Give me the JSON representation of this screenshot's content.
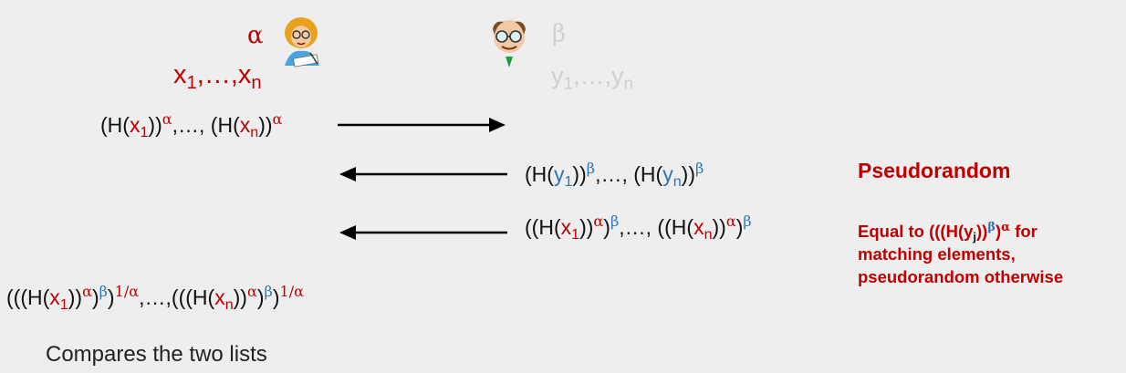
{
  "alice": {
    "exponent": "α",
    "set_var": "x",
    "sub_first": "1",
    "sub_last": "n",
    "ellipsis": ",…,"
  },
  "bob": {
    "exponent": "β",
    "set_var": "y",
    "sub_first": "1",
    "sub_last": "n",
    "ellipsis": ",…,"
  },
  "messages": {
    "hash": "H",
    "sep": ",…,",
    "inverse_exponent": "1/α",
    "index_j": "j"
  },
  "notes": {
    "pseudorandom": "Pseudorandom",
    "equal_prefix": "Equal to (((H(y",
    "equal_mid": "))",
    "equal_suffix": " for",
    "equal_line2": "matching elements,",
    "equal_line3": "pseudorandom otherwise"
  },
  "footer": {
    "compare": "Compares the two lists"
  },
  "colors": {
    "alice_accent": "#c00000",
    "bob_accent": "#2e75b6",
    "bob_faded": "#cfcfcf",
    "background": "#eeeeee"
  },
  "icons": {
    "alice": "alice-avatar-icon",
    "bob": "bob-avatar-icon"
  }
}
